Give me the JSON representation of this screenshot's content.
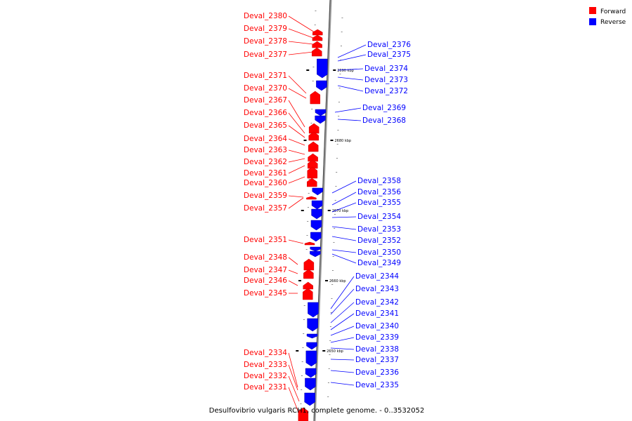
{
  "legend": {
    "forward": {
      "label": "Forward",
      "color": "#ff0000"
    },
    "reverse": {
      "label": "Reverse",
      "color": "#0000ff"
    }
  },
  "caption": "Desulfovibrio vulgaris RCH1, complete genome. - 0..3532052",
  "scale_ticks": [
    "2690 kbp",
    "2680 kbp",
    "2670 kbp",
    "2660 kbp",
    "2650 kbp"
  ],
  "forward_genes": [
    "Deval_2380",
    "Deval_2379",
    "Deval_2378",
    "Deval_2377",
    "Deval_2371",
    "Deval_2370",
    "Deval_2367",
    "Deval_2366",
    "Deval_2365",
    "Deval_2364",
    "Deval_2363",
    "Deval_2362",
    "Deval_2361",
    "Deval_2360",
    "Deval_2359",
    "Deval_2357",
    "Deval_2351",
    "Deval_2348",
    "Deval_2347",
    "Deval_2346",
    "Deval_2345",
    "Deval_2334",
    "Deval_2333",
    "Deval_2332",
    "Deval_2331"
  ],
  "reverse_genes": [
    "Deval_2376",
    "Deval_2375",
    "Deval_2374",
    "Deval_2373",
    "Deval_2372",
    "Deval_2369",
    "Deval_2368",
    "Deval_2358",
    "Deval_2356",
    "Deval_2355",
    "Deval_2354",
    "Deval_2353",
    "Deval_2352",
    "Deval_2350",
    "Deval_2349",
    "Deval_2344",
    "Deval_2343",
    "Deval_2342",
    "Deval_2341",
    "Deval_2340",
    "Deval_2339",
    "Deval_2338",
    "Deval_2337",
    "Deval_2336",
    "Deval_2335"
  ]
}
